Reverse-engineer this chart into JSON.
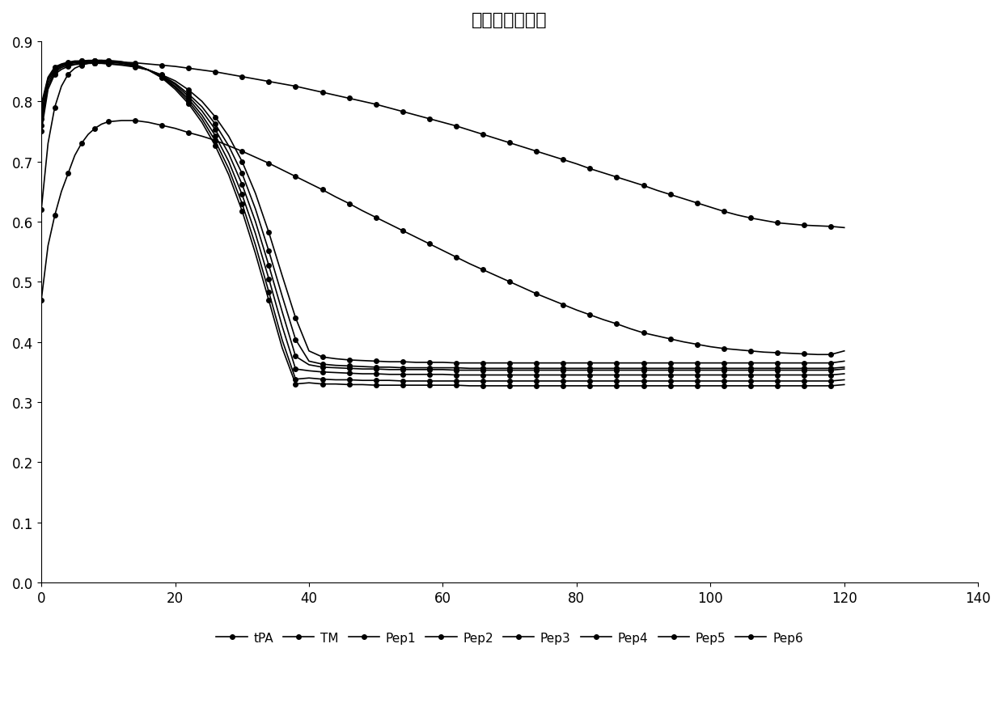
{
  "title": "溶栓肽活性实验",
  "xlim": [
    0,
    140
  ],
  "ylim": [
    0,
    0.9
  ],
  "xticks": [
    0,
    20,
    40,
    60,
    80,
    100,
    120,
    140
  ],
  "yticks": [
    0,
    0.1,
    0.2,
    0.3,
    0.4,
    0.5,
    0.6,
    0.7,
    0.8,
    0.9
  ],
  "series": {
    "tPA": {
      "x": [
        0,
        1,
        2,
        3,
        4,
        5,
        6,
        7,
        8,
        9,
        10,
        12,
        14,
        16,
        18,
        20,
        22,
        24,
        26,
        28,
        30,
        32,
        34,
        36,
        38,
        40,
        42,
        44,
        46,
        48,
        50,
        52,
        54,
        56,
        58,
        60,
        62,
        64,
        66,
        68,
        70,
        72,
        74,
        76,
        78,
        80,
        82,
        84,
        86,
        88,
        90,
        92,
        94,
        96,
        98,
        100,
        102,
        104,
        106,
        108,
        110,
        112,
        114,
        116,
        118,
        120
      ],
      "y": [
        0.47,
        0.56,
        0.61,
        0.65,
        0.68,
        0.71,
        0.73,
        0.745,
        0.755,
        0.762,
        0.766,
        0.768,
        0.768,
        0.765,
        0.76,
        0.755,
        0.748,
        0.742,
        0.735,
        0.726,
        0.717,
        0.707,
        0.697,
        0.686,
        0.675,
        0.664,
        0.653,
        0.641,
        0.63,
        0.618,
        0.607,
        0.596,
        0.585,
        0.574,
        0.563,
        0.552,
        0.541,
        0.53,
        0.52,
        0.51,
        0.5,
        0.49,
        0.48,
        0.471,
        0.462,
        0.453,
        0.445,
        0.437,
        0.43,
        0.422,
        0.415,
        0.41,
        0.405,
        0.4,
        0.396,
        0.392,
        0.389,
        0.387,
        0.385,
        0.383,
        0.382,
        0.381,
        0.38,
        0.379,
        0.379,
        0.385
      ]
    },
    "TM": {
      "x": [
        0,
        1,
        2,
        3,
        4,
        5,
        6,
        7,
        8,
        9,
        10,
        12,
        14,
        16,
        18,
        20,
        22,
        24,
        26,
        28,
        30,
        32,
        34,
        36,
        38,
        40,
        42,
        44,
        46,
        48,
        50,
        52,
        54,
        56,
        58,
        60,
        62,
        64,
        66,
        68,
        70,
        72,
        74,
        76,
        78,
        80,
        82,
        84,
        86,
        88,
        90,
        92,
        94,
        96,
        98,
        100,
        102,
        104,
        106,
        108,
        110,
        112,
        114,
        116,
        118,
        120
      ],
      "y": [
        0.62,
        0.73,
        0.79,
        0.825,
        0.845,
        0.855,
        0.86,
        0.863,
        0.864,
        0.865,
        0.865,
        0.865,
        0.864,
        0.862,
        0.86,
        0.858,
        0.855,
        0.852,
        0.849,
        0.845,
        0.841,
        0.837,
        0.833,
        0.829,
        0.825,
        0.82,
        0.815,
        0.81,
        0.805,
        0.8,
        0.795,
        0.789,
        0.783,
        0.777,
        0.771,
        0.765,
        0.759,
        0.752,
        0.745,
        0.738,
        0.731,
        0.724,
        0.717,
        0.71,
        0.703,
        0.696,
        0.688,
        0.681,
        0.674,
        0.667,
        0.66,
        0.652,
        0.645,
        0.638,
        0.631,
        0.624,
        0.617,
        0.611,
        0.606,
        0.602,
        0.598,
        0.596,
        0.594,
        0.593,
        0.592,
        0.59
      ]
    },
    "Pep1": {
      "x": [
        0,
        1,
        2,
        3,
        4,
        5,
        6,
        7,
        8,
        9,
        10,
        12,
        14,
        16,
        18,
        20,
        22,
        24,
        26,
        28,
        30,
        32,
        34,
        36,
        38,
        40,
        42,
        44,
        46,
        48,
        50,
        52,
        54,
        56,
        58,
        60,
        62,
        64,
        66,
        68,
        70,
        72,
        74,
        76,
        78,
        80,
        82,
        84,
        86,
        88,
        90,
        92,
        94,
        96,
        98,
        100,
        102,
        104,
        106,
        108,
        110,
        112,
        114,
        116,
        118,
        120
      ],
      "y": [
        0.75,
        0.82,
        0.845,
        0.853,
        0.858,
        0.861,
        0.862,
        0.863,
        0.863,
        0.863,
        0.862,
        0.86,
        0.857,
        0.852,
        0.844,
        0.834,
        0.819,
        0.8,
        0.774,
        0.742,
        0.7,
        0.647,
        0.582,
        0.51,
        0.44,
        0.385,
        0.375,
        0.372,
        0.37,
        0.369,
        0.368,
        0.367,
        0.367,
        0.366,
        0.366,
        0.366,
        0.365,
        0.365,
        0.365,
        0.365,
        0.365,
        0.365,
        0.365,
        0.365,
        0.365,
        0.365,
        0.365,
        0.365,
        0.365,
        0.365,
        0.365,
        0.365,
        0.365,
        0.365,
        0.365,
        0.365,
        0.365,
        0.365,
        0.365,
        0.365,
        0.365,
        0.365,
        0.365,
        0.365,
        0.365,
        0.368
      ]
    },
    "Pep2": {
      "x": [
        0,
        1,
        2,
        3,
        4,
        5,
        6,
        7,
        8,
        9,
        10,
        12,
        14,
        16,
        18,
        20,
        22,
        24,
        26,
        28,
        30,
        32,
        34,
        36,
        38,
        40,
        42,
        44,
        46,
        48,
        50,
        52,
        54,
        56,
        58,
        60,
        62,
        64,
        66,
        68,
        70,
        72,
        74,
        76,
        78,
        80,
        82,
        84,
        86,
        88,
        90,
        92,
        94,
        96,
        98,
        100,
        102,
        104,
        106,
        108,
        110,
        112,
        114,
        116,
        118,
        120
      ],
      "y": [
        0.76,
        0.825,
        0.848,
        0.856,
        0.86,
        0.862,
        0.863,
        0.864,
        0.864,
        0.864,
        0.863,
        0.861,
        0.858,
        0.852,
        0.843,
        0.83,
        0.812,
        0.791,
        0.762,
        0.726,
        0.68,
        0.621,
        0.551,
        0.476,
        0.404,
        0.368,
        0.363,
        0.361,
        0.36,
        0.359,
        0.358,
        0.358,
        0.357,
        0.357,
        0.357,
        0.357,
        0.357,
        0.356,
        0.356,
        0.356,
        0.356,
        0.356,
        0.356,
        0.356,
        0.356,
        0.356,
        0.356,
        0.356,
        0.356,
        0.356,
        0.356,
        0.356,
        0.356,
        0.356,
        0.356,
        0.356,
        0.356,
        0.356,
        0.356,
        0.356,
        0.356,
        0.356,
        0.356,
        0.356,
        0.356,
        0.358
      ]
    },
    "Pep3": {
      "x": [
        0,
        1,
        2,
        3,
        4,
        5,
        6,
        7,
        8,
        9,
        10,
        12,
        14,
        16,
        18,
        20,
        22,
        24,
        26,
        28,
        30,
        32,
        34,
        36,
        38,
        40,
        42,
        44,
        46,
        48,
        50,
        52,
        54,
        56,
        58,
        60,
        62,
        64,
        66,
        68,
        70,
        72,
        74,
        76,
        78,
        80,
        82,
        84,
        86,
        88,
        90,
        92,
        94,
        96,
        98,
        100,
        102,
        104,
        106,
        108,
        110,
        112,
        114,
        116,
        118,
        120
      ],
      "y": [
        0.77,
        0.83,
        0.851,
        0.858,
        0.862,
        0.864,
        0.865,
        0.866,
        0.866,
        0.866,
        0.865,
        0.863,
        0.859,
        0.852,
        0.842,
        0.828,
        0.808,
        0.784,
        0.753,
        0.713,
        0.662,
        0.6,
        0.527,
        0.45,
        0.376,
        0.362,
        0.358,
        0.357,
        0.356,
        0.355,
        0.355,
        0.354,
        0.354,
        0.354,
        0.354,
        0.354,
        0.353,
        0.353,
        0.353,
        0.353,
        0.353,
        0.353,
        0.353,
        0.353,
        0.353,
        0.353,
        0.353,
        0.353,
        0.353,
        0.353,
        0.353,
        0.353,
        0.353,
        0.353,
        0.353,
        0.353,
        0.353,
        0.353,
        0.353,
        0.353,
        0.353,
        0.353,
        0.353,
        0.353,
        0.353,
        0.355
      ]
    },
    "Pep4": {
      "x": [
        0,
        1,
        2,
        3,
        4,
        5,
        6,
        7,
        8,
        9,
        10,
        12,
        14,
        16,
        18,
        20,
        22,
        24,
        26,
        28,
        30,
        32,
        34,
        36,
        38,
        40,
        42,
        44,
        46,
        48,
        50,
        52,
        54,
        56,
        58,
        60,
        62,
        64,
        66,
        68,
        70,
        72,
        74,
        76,
        78,
        80,
        82,
        84,
        86,
        88,
        90,
        92,
        94,
        96,
        98,
        100,
        102,
        104,
        106,
        108,
        110,
        112,
        114,
        116,
        118,
        120
      ],
      "y": [
        0.78,
        0.835,
        0.853,
        0.86,
        0.863,
        0.865,
        0.866,
        0.867,
        0.867,
        0.867,
        0.866,
        0.864,
        0.86,
        0.852,
        0.841,
        0.825,
        0.804,
        0.777,
        0.743,
        0.7,
        0.645,
        0.58,
        0.505,
        0.426,
        0.355,
        0.352,
        0.35,
        0.349,
        0.348,
        0.347,
        0.347,
        0.346,
        0.346,
        0.346,
        0.346,
        0.346,
        0.345,
        0.345,
        0.345,
        0.345,
        0.345,
        0.345,
        0.345,
        0.345,
        0.345,
        0.345,
        0.345,
        0.345,
        0.345,
        0.345,
        0.345,
        0.345,
        0.345,
        0.345,
        0.345,
        0.345,
        0.345,
        0.345,
        0.345,
        0.345,
        0.345,
        0.345,
        0.345,
        0.345,
        0.345,
        0.347
      ]
    },
    "Pep5": {
      "x": [
        0,
        1,
        2,
        3,
        4,
        5,
        6,
        7,
        8,
        9,
        10,
        12,
        14,
        16,
        18,
        20,
        22,
        24,
        26,
        28,
        30,
        32,
        34,
        36,
        38,
        40,
        42,
        44,
        46,
        48,
        50,
        52,
        54,
        56,
        58,
        60,
        62,
        64,
        66,
        68,
        70,
        72,
        74,
        76,
        78,
        80,
        82,
        84,
        86,
        88,
        90,
        92,
        94,
        96,
        98,
        100,
        102,
        104,
        106,
        108,
        110,
        112,
        114,
        116,
        118,
        120
      ],
      "y": [
        0.79,
        0.838,
        0.856,
        0.861,
        0.864,
        0.866,
        0.867,
        0.867,
        0.868,
        0.868,
        0.867,
        0.865,
        0.861,
        0.852,
        0.84,
        0.823,
        0.8,
        0.771,
        0.734,
        0.688,
        0.63,
        0.561,
        0.483,
        0.403,
        0.338,
        0.34,
        0.338,
        0.337,
        0.337,
        0.336,
        0.336,
        0.336,
        0.335,
        0.335,
        0.335,
        0.335,
        0.335,
        0.335,
        0.335,
        0.335,
        0.335,
        0.335,
        0.335,
        0.335,
        0.335,
        0.335,
        0.335,
        0.335,
        0.335,
        0.335,
        0.335,
        0.335,
        0.335,
        0.335,
        0.335,
        0.335,
        0.335,
        0.335,
        0.335,
        0.335,
        0.335,
        0.335,
        0.335,
        0.335,
        0.335,
        0.337
      ]
    },
    "Pep6": {
      "x": [
        0,
        1,
        2,
        3,
        4,
        5,
        6,
        7,
        8,
        9,
        10,
        12,
        14,
        16,
        18,
        20,
        22,
        24,
        26,
        28,
        30,
        32,
        34,
        36,
        38,
        40,
        42,
        44,
        46,
        48,
        50,
        52,
        54,
        56,
        58,
        60,
        62,
        64,
        66,
        68,
        70,
        72,
        74,
        76,
        78,
        80,
        82,
        84,
        86,
        88,
        90,
        92,
        94,
        96,
        98,
        100,
        102,
        104,
        106,
        108,
        110,
        112,
        114,
        116,
        118,
        120
      ],
      "y": [
        0.795,
        0.84,
        0.857,
        0.862,
        0.865,
        0.867,
        0.867,
        0.868,
        0.868,
        0.868,
        0.868,
        0.866,
        0.861,
        0.852,
        0.839,
        0.82,
        0.796,
        0.765,
        0.726,
        0.678,
        0.618,
        0.547,
        0.469,
        0.39,
        0.33,
        0.332,
        0.33,
        0.33,
        0.329,
        0.329,
        0.328,
        0.328,
        0.328,
        0.328,
        0.328,
        0.328,
        0.328,
        0.327,
        0.327,
        0.327,
        0.327,
        0.327,
        0.327,
        0.327,
        0.327,
        0.327,
        0.327,
        0.327,
        0.327,
        0.327,
        0.327,
        0.327,
        0.327,
        0.327,
        0.327,
        0.327,
        0.327,
        0.327,
        0.327,
        0.327,
        0.327,
        0.327,
        0.327,
        0.327,
        0.327,
        0.329
      ]
    }
  },
  "legend_labels": [
    "tPA",
    "TM",
    "Pep1",
    "Pep2",
    "Pep3",
    "Pep4",
    "Pep5",
    "Pep6"
  ],
  "line_color": "#000000",
  "marker": "o",
  "markersize": 4,
  "linewidth": 1.2,
  "title_fontsize": 16,
  "background_color": "#ffffff"
}
